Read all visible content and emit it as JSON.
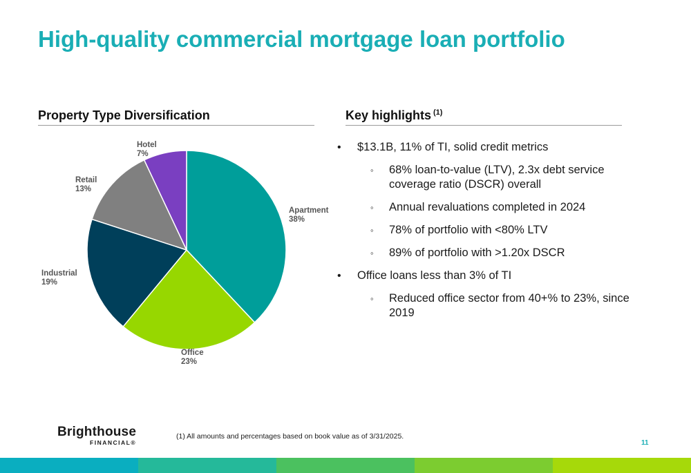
{
  "slide": {
    "title": "High-quality commercial mortgage loan portfolio",
    "left_heading": "Property Type Diversification",
    "right_heading": "Key highlights",
    "right_heading_note": "(1)",
    "footnote": "(1) All amounts and percentages based on book value as of 3/31/2025.",
    "page_number": "11",
    "logo": {
      "name": "Brighthouse",
      "sub": "FINANCIAL",
      "mark": "®"
    }
  },
  "highlights": [
    {
      "level": 1,
      "bullet": "•",
      "text": "$13.1B, 11% of TI, solid credit metrics"
    },
    {
      "level": 2,
      "bullet": "◦",
      "text": "68% loan-to-value (LTV), 2.3x debt service coverage ratio (DSCR) overall"
    },
    {
      "level": 2,
      "bullet": "◦",
      "text": "Annual revaluations completed in 2024"
    },
    {
      "level": 2,
      "bullet": "◦",
      "text": "78% of portfolio with <80% LTV"
    },
    {
      "level": 2,
      "bullet": "◦",
      "text": "89% of portfolio with >1.20x DSCR"
    },
    {
      "level": 1,
      "bullet": "•",
      "text": "Office loans less than 3% of TI"
    },
    {
      "level": 2,
      "bullet": "◦",
      "text": "Reduced office sector from 40+% to 23%, since 2019"
    }
  ],
  "chart_data": {
    "type": "pie",
    "title": "Property Type Diversification",
    "start_angle_deg": 0,
    "direction": "clockwise",
    "slices": [
      {
        "name": "Apartment",
        "value": 38,
        "label": "38%",
        "color": "#009e9a"
      },
      {
        "name": "Office",
        "value": 23,
        "label": "23%",
        "color": "#97d700"
      },
      {
        "name": "Industrial",
        "value": 19,
        "label": "19%",
        "color": "#003f5a"
      },
      {
        "name": "Retail",
        "value": 13,
        "label": "13%",
        "color": "#808080"
      },
      {
        "name": "Hotel",
        "value": 7,
        "label": "7%",
        "color": "#7a3fc1"
      }
    ]
  },
  "footer_colors": [
    "#0aaec0",
    "#25b99a",
    "#4bc15f",
    "#7ccc30",
    "#a6d90a"
  ]
}
